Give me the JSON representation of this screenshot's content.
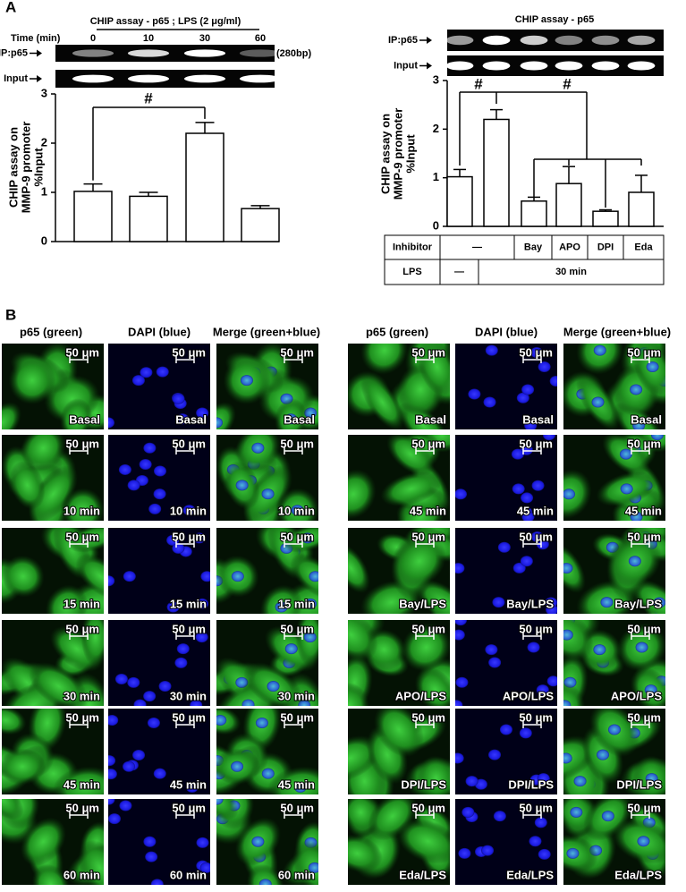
{
  "panel_labels": [
    "A",
    "B"
  ],
  "chart_data": [
    {
      "type": "bar",
      "title": "CHIP assay - p65 ; LPS (2 μg/ml)",
      "x_label": "Time (min)",
      "categories": [
        "0",
        "10",
        "30",
        "60"
      ],
      "values": [
        1.02,
        0.92,
        2.2,
        0.67
      ],
      "errors": [
        0.15,
        0.08,
        0.22,
        0.06
      ],
      "ylabel": [
        "CHIP assay on",
        "MMP-9 promoter",
        "%Input"
      ],
      "ylim": [
        0,
        3
      ],
      "yticks": [
        0,
        1,
        2,
        3
      ],
      "color": "#ffffff",
      "gel_rows": [
        "IP:p65",
        "Input"
      ],
      "band_size": "(280bp)",
      "annotations": [
        "#"
      ]
    },
    {
      "type": "bar",
      "title": "CHIP assay - p65",
      "values": [
        1.02,
        2.2,
        0.52,
        0.88,
        0.31,
        0.7
      ],
      "errors": [
        0.15,
        0.2,
        0.08,
        0.35,
        0.03,
        0.35
      ],
      "ylabel": [
        "CHIP assay on",
        "MMP-9 promoter",
        "%Input"
      ],
      "ylim": [
        0,
        3
      ],
      "yticks": [
        0,
        1,
        2,
        3
      ],
      "color": "#ffffff",
      "gel_rows": [
        "IP:p65",
        "Input"
      ],
      "annotations": [
        "#",
        "#"
      ],
      "table": {
        "rows": [
          [
            "Inhibitor",
            "—",
            "Bay",
            "APO",
            "DPI",
            "Eda"
          ],
          [
            "LPS",
            "—",
            "30 min"
          ]
        ]
      }
    }
  ],
  "microscopy": {
    "scale_bar": "50 μm",
    "columns": [
      "p65 (green)",
      "DAPI (blue)",
      "Merge (green+blue)"
    ],
    "left_rows": [
      "Basal",
      "10 min",
      "15 min",
      "30 min",
      "45 min",
      "60 min"
    ],
    "right_rows": [
      "Basal",
      "45 min",
      "Bay/LPS",
      "APO/LPS",
      "DPI/LPS",
      "Eda/LPS"
    ]
  }
}
